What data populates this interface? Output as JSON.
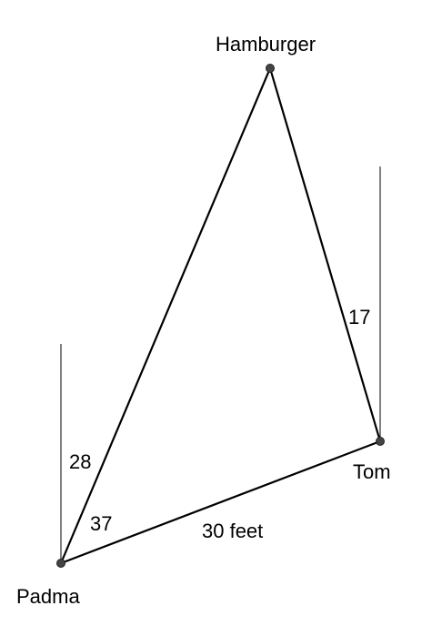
{
  "points": {
    "hamburger": "Hamburger",
    "tom": "Tom",
    "padma": "Padma"
  },
  "measurements": {
    "angle_padma_upper": "28",
    "angle_padma_lower": "37",
    "angle_tom": "17",
    "distance_padma_tom": "30 feet"
  },
  "colors": {
    "line": "#000000",
    "point": "#444444",
    "background": "#ffffff"
  }
}
